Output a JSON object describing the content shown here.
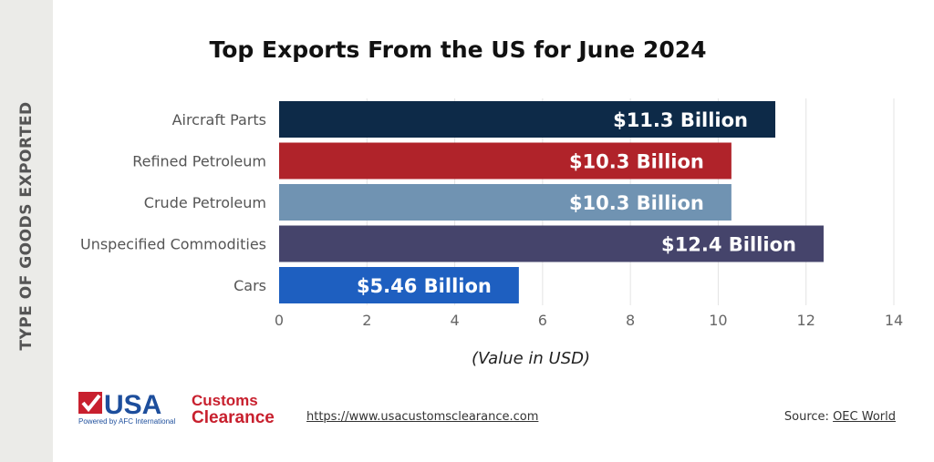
{
  "sidebar_label": "TYPE OF GOODS EXPORTED",
  "chart_data": {
    "type": "bar",
    "orientation": "horizontal",
    "title": "Top Exports From the US for June 2024",
    "xlabel": "(Value in USD)",
    "ylabel": "TYPE OF GOODS EXPORTED",
    "categories": [
      "Aircraft Parts",
      "Refined Petroleum",
      "Crude Petroleum",
      "Unspecified Commodities",
      "Cars"
    ],
    "values": [
      11.3,
      10.3,
      10.3,
      12.4,
      5.46
    ],
    "data_labels": [
      "$11.3 Billion",
      "$10.3 Billion",
      "$10.3 Billion",
      "$12.4 Billion",
      "$5.46 Billion"
    ],
    "colors": [
      "#0d2a48",
      "#b0232a",
      "#7093b2",
      "#45446b",
      "#1e5fc0"
    ],
    "xlim": [
      0,
      14
    ],
    "xticks": [
      "0",
      "2",
      "4",
      "6",
      "8",
      "10",
      "12",
      "14"
    ],
    "grid": true
  },
  "footer": {
    "logo_text": "USA Customs Clearance",
    "logo_tagline": "Powered by AFC International",
    "url": "https://www.usacustomsclearance.com",
    "source_prefix": "Source: ",
    "source_link": "OEC World"
  }
}
